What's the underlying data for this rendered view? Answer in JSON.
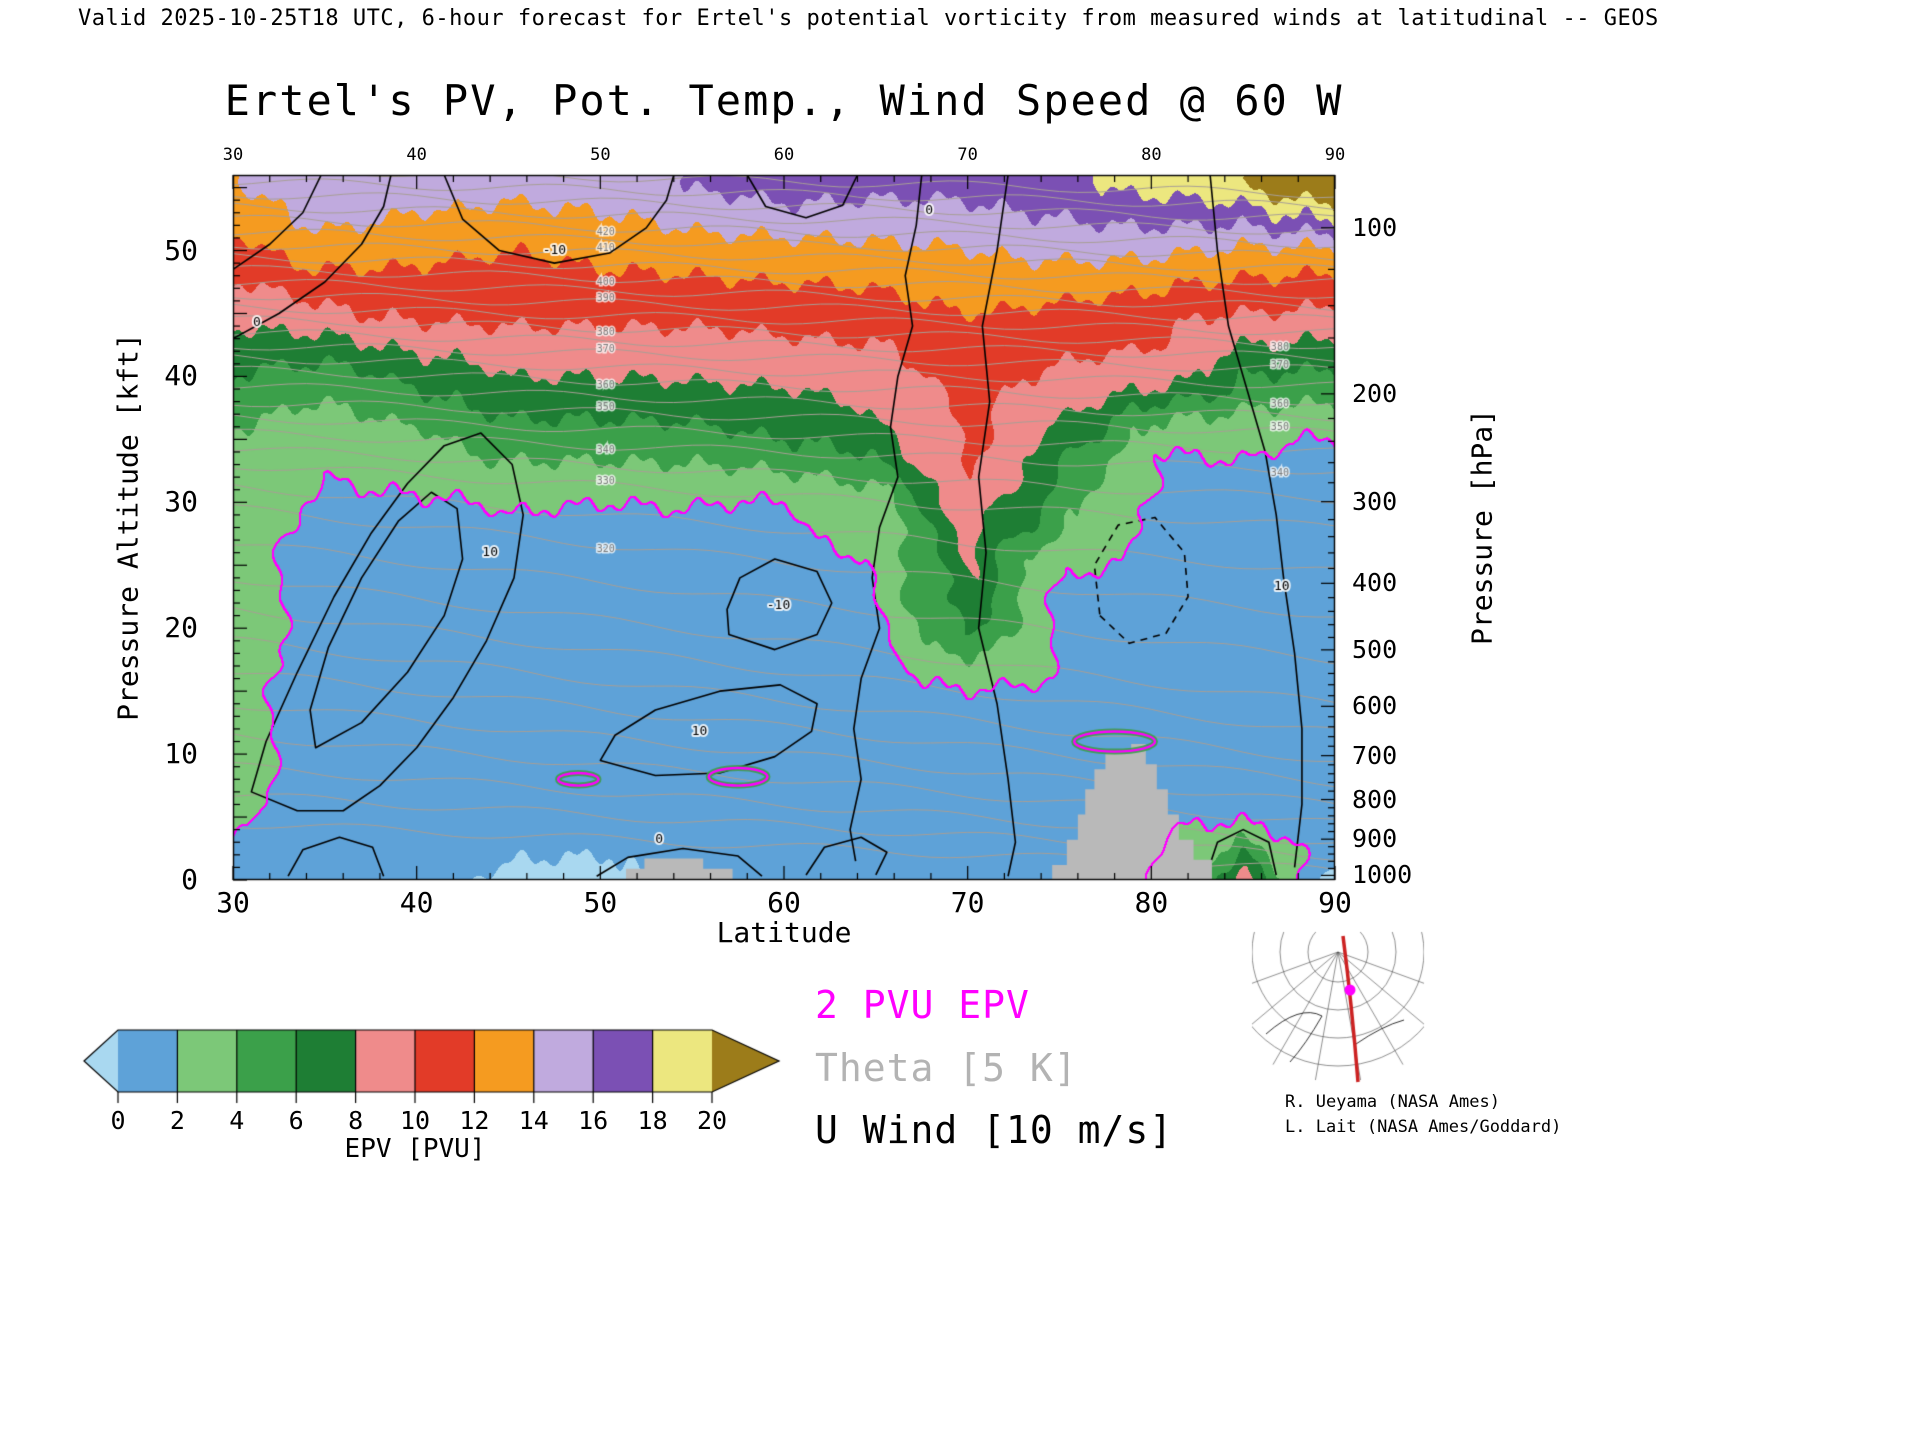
{
  "header": {
    "text": "Valid 2025-10-25T18 UTC, 6-hour forecast for Ertel's potential vorticity from measured winds at latitudinal -- GEOS"
  },
  "title": "Ertel's PV, Pot. Temp., Wind Speed @ 60 W",
  "axes": {
    "x": {
      "label": "Latitude",
      "range": [
        30,
        90
      ],
      "major_ticks": [
        30,
        40,
        50,
        60,
        70,
        80,
        90
      ],
      "minor_step": 2
    },
    "y_left": {
      "label": "Pressure Altitude [kft]",
      "range": [
        0,
        56
      ],
      "major_ticks": [
        0,
        10,
        20,
        30,
        40,
        50
      ],
      "minor_step": 1
    },
    "y_right": {
      "label": "Pressure [hPa]",
      "ticks": [
        100,
        200,
        300,
        400,
        500,
        600,
        700,
        800,
        900,
        1000
      ],
      "minor_step_hpa": 20
    }
  },
  "legend": [
    {
      "label": "2 PVU EPV",
      "color": "#ff00ff"
    },
    {
      "label": "Theta [5 K]",
      "color": "#b3b3b3"
    },
    {
      "label": "U Wind [10 m/s]",
      "color": "#000000"
    }
  ],
  "credits": {
    "line1": "R. Ueyama (NASA Ames)",
    "line2": "L. Lait (NASA Ames/Goddard)"
  },
  "colorbar": {
    "label": "EPV [PVU]",
    "tick_values": [
      0,
      2,
      4,
      6,
      8,
      10,
      12,
      14,
      16,
      18,
      20
    ]
  },
  "chart_data": {
    "type": "heatmap",
    "title": "Ertel's PV, Pot. Temp., Wind Speed @ 60 W",
    "xlabel": "Latitude",
    "ylabel": "Pressure Altitude [kft]",
    "y2label": "Pressure [hPa]",
    "x_range": [
      30,
      90
    ],
    "y_range_kft": [
      0,
      56
    ],
    "epv_grid": {
      "lat": [
        30,
        35,
        40,
        45,
        50,
        55,
        60,
        65,
        70,
        75,
        80,
        85,
        90
      ],
      "alt_kft": [
        0,
        5,
        10,
        15,
        20,
        25,
        30,
        35,
        40,
        45,
        50,
        55
      ],
      "values_bottom_up": [
        [
          1.2,
          1.0,
          0.8,
          -0.5,
          -0.5,
          0.6,
          0.8,
          1.0,
          1.5,
          1.2,
          1.5,
          9.0,
          -0.5
        ],
        [
          2.4,
          0.9,
          1.0,
          1.0,
          0.8,
          1.0,
          1.0,
          1.2,
          1.5,
          1.5,
          1.8,
          1.5,
          1.0
        ],
        [
          2.8,
          1.0,
          1.2,
          1.0,
          1.0,
          1.0,
          1.2,
          1.3,
          1.6,
          1.8,
          1.8,
          1.5,
          1.4
        ],
        [
          2.8,
          1.1,
          1.2,
          1.2,
          1.0,
          1.2,
          1.3,
          1.5,
          1.9,
          1.8,
          1.7,
          1.5,
          1.5
        ],
        [
          2.8,
          1.2,
          1.2,
          1.3,
          1.2,
          1.3,
          1.5,
          1.7,
          6.0,
          1.8,
          1.7,
          1.7,
          1.6
        ],
        [
          2.8,
          1.3,
          1.3,
          1.6,
          1.5,
          1.6,
          1.7,
          1.8,
          8.5,
          2.05,
          1.9,
          1.9,
          1.8
        ],
        [
          3.0,
          1.6,
          1.8,
          2.1,
          2.0,
          2.05,
          1.9,
          3.2,
          9.5,
          5.0,
          1.8,
          1.9,
          1.8
        ],
        [
          3.5,
          2.6,
          3.5,
          5.0,
          5.0,
          5.2,
          6.0,
          7.0,
          10.5,
          7.5,
          2.05,
          2.05,
          1.95
        ],
        [
          6.0,
          5.0,
          6.5,
          8.0,
          8.0,
          8.2,
          8.5,
          9.0,
          11.0,
          9.5,
          9.5,
          6.0,
          5.5
        ],
        [
          8.5,
          9.5,
          10.5,
          10.5,
          10.5,
          10.5,
          10.8,
          11.0,
          12.0,
          11.5,
          10.5,
          10.0,
          9.5
        ],
        [
          11.5,
          13.0,
          12.5,
          12.0,
          12.5,
          13.0,
          13.2,
          13.5,
          14.0,
          14.5,
          14.5,
          13.5,
          13.5
        ],
        [
          13.5,
          16.0,
          15.0,
          14.5,
          15.0,
          16.0,
          17.0,
          16.5,
          16.5,
          17.5,
          18.5,
          19.5,
          23.0
        ]
      ]
    },
    "colormap": {
      "breaks": [
        0,
        2,
        4,
        6,
        8,
        10,
        12,
        14,
        16,
        18,
        20
      ],
      "under": "#a9d8f0",
      "colors": [
        "#5ea2d8",
        "#7cc878",
        "#3ba04a",
        "#1e7e34",
        "#ef8b8b",
        "#e23b28",
        "#f59b20",
        "#c0aade",
        "#7b50b4",
        "#ece77f"
      ],
      "over": "#9c7c1a"
    },
    "pv2_contour_level": 2,
    "pv2_contour_color": "#ff00ff",
    "pv2_extra_ellipses": [
      {
        "lat": 57.5,
        "alt": 8.2,
        "rlat": 1.6,
        "ralt": 0.7
      },
      {
        "lat": 48.8,
        "alt": 8.0,
        "rlat": 1.1,
        "ralt": 0.5
      },
      {
        "lat": 78.0,
        "alt": 11.0,
        "rlat": 2.2,
        "ralt": 0.8
      }
    ],
    "u_wind_contours": [
      {
        "points": [
          [
            67.5,
            56
          ],
          [
            67.2,
            52
          ],
          [
            66.6,
            48
          ],
          [
            67.0,
            44
          ],
          [
            66.2,
            40
          ],
          [
            65.8,
            36
          ],
          [
            66.2,
            32
          ],
          [
            65.2,
            28
          ],
          [
            64.8,
            24
          ],
          [
            65.2,
            20
          ],
          [
            64.2,
            16
          ],
          [
            63.8,
            12
          ],
          [
            64.2,
            8
          ],
          [
            63.6,
            4
          ],
          [
            63.9,
            1.5
          ]
        ],
        "label": "0",
        "label_at": [
          67.9,
          53.2
        ],
        "closed": false,
        "dashed": false
      },
      {
        "points": [
          [
            72.2,
            56
          ],
          [
            71.6,
            50
          ],
          [
            70.8,
            44
          ],
          [
            71.2,
            38
          ],
          [
            70.6,
            32
          ],
          [
            71.0,
            26
          ],
          [
            70.6,
            20
          ],
          [
            71.6,
            14
          ],
          [
            72.2,
            8
          ],
          [
            72.6,
            3
          ],
          [
            72.2,
            0.3
          ]
        ],
        "closed": false,
        "dashed": false
      },
      {
        "points": [
          [
            31,
            7
          ],
          [
            33.5,
            5.5
          ],
          [
            36,
            5.5
          ],
          [
            38,
            7.5
          ],
          [
            40,
            10.5
          ],
          [
            42,
            14.5
          ],
          [
            43.8,
            19
          ],
          [
            45.3,
            24
          ],
          [
            45.8,
            29
          ],
          [
            45.2,
            33
          ],
          [
            43.5,
            35.5
          ],
          [
            41.5,
            34.5
          ],
          [
            39.5,
            31.5
          ],
          [
            37.5,
            27.5
          ],
          [
            35.5,
            22.5
          ],
          [
            33.5,
            16.5
          ],
          [
            31.8,
            11
          ]
        ],
        "label": "10",
        "label_at": [
          44.0,
          26.0
        ],
        "closed": true,
        "dashed": false
      },
      {
        "points": [
          [
            34.5,
            10.5
          ],
          [
            37,
            12.5
          ],
          [
            39.5,
            16.5
          ],
          [
            41.5,
            21
          ],
          [
            42.5,
            25.5
          ],
          [
            42.2,
            29.5
          ],
          [
            40.8,
            30.8
          ],
          [
            39,
            28.5
          ],
          [
            37,
            24
          ],
          [
            35.2,
            18.5
          ],
          [
            34.2,
            13.5
          ]
        ],
        "closed": true,
        "dashed": false
      },
      {
        "points": [
          [
            30,
            43
          ],
          [
            32.5,
            45
          ],
          [
            35,
            47.5
          ],
          [
            37,
            50.5
          ],
          [
            38.2,
            53.5
          ],
          [
            38.6,
            56
          ]
        ],
        "label": "0",
        "label_at": [
          31.3,
          44.3
        ],
        "closed": false,
        "dashed": false
      },
      {
        "points": [
          [
            30,
            48.5
          ],
          [
            32,
            50.5
          ],
          [
            33.8,
            53
          ],
          [
            34.8,
            56
          ]
        ],
        "closed": false,
        "dashed": false
      },
      {
        "points": [
          [
            41.5,
            56
          ],
          [
            42.5,
            52.5
          ],
          [
            44.5,
            50
          ],
          [
            47.5,
            49
          ],
          [
            50.5,
            49.8
          ],
          [
            52.5,
            51.8
          ],
          [
            53.6,
            54
          ],
          [
            54,
            56
          ]
        ],
        "label": "-10",
        "label_at": [
          47.5,
          50.0
        ],
        "closed": false,
        "dashed": false
      },
      {
        "points": [
          [
            50,
            9.5
          ],
          [
            53,
            8.3
          ],
          [
            56.5,
            8.5
          ],
          [
            59.5,
            9.8
          ],
          [
            61.5,
            11.8
          ],
          [
            61.8,
            14
          ],
          [
            59.8,
            15.5
          ],
          [
            56.5,
            15
          ],
          [
            53,
            13.5
          ],
          [
            50.8,
            11.5
          ]
        ],
        "label": "10",
        "label_at": [
          55.4,
          11.8
        ],
        "closed": true,
        "dashed": false
      },
      {
        "points": [
          [
            57,
            19.5
          ],
          [
            59.5,
            18.3
          ],
          [
            61.8,
            19.5
          ],
          [
            62.6,
            22
          ],
          [
            61.8,
            24.5
          ],
          [
            59.5,
            25.5
          ],
          [
            57.6,
            24
          ],
          [
            56.9,
            21.5
          ]
        ],
        "label": "-10",
        "label_at": [
          59.7,
          21.8
        ],
        "closed": true,
        "dashed": false
      },
      {
        "points": [
          [
            83.2,
            56
          ],
          [
            83.6,
            50
          ],
          [
            84.2,
            44
          ],
          [
            85.2,
            39
          ],
          [
            86.2,
            34
          ],
          [
            86.8,
            29
          ],
          [
            87.2,
            24
          ],
          [
            87.8,
            18
          ],
          [
            88.2,
            12
          ],
          [
            88.2,
            6
          ],
          [
            87.8,
            1
          ]
        ],
        "label": "10",
        "label_at": [
          87.1,
          23.3
        ],
        "closed": false,
        "dashed": false
      },
      {
        "points": [
          [
            77.2,
            21
          ],
          [
            78.8,
            18.8
          ],
          [
            80.8,
            19.6
          ],
          [
            82,
            22.5
          ],
          [
            81.8,
            26
          ],
          [
            80.2,
            28.8
          ],
          [
            78.2,
            28.2
          ],
          [
            76.9,
            25
          ]
        ],
        "closed": true,
        "dashed": true
      },
      {
        "points": [
          [
            49.8,
            0.3
          ],
          [
            51.5,
            1.8
          ],
          [
            54.5,
            2.5
          ],
          [
            57.5,
            1.9
          ],
          [
            58.8,
            0.3
          ]
        ],
        "label": "0",
        "label_at": [
          53.2,
          3.2
        ],
        "closed": false,
        "dashed": false
      },
      {
        "points": [
          [
            61.2,
            0.4
          ],
          [
            62.2,
            2.6
          ],
          [
            64.2,
            3.4
          ],
          [
            65.6,
            2.2
          ],
          [
            65.0,
            0.4
          ]
        ],
        "closed": false,
        "dashed": false
      },
      {
        "points": [
          [
            33.0,
            0.3
          ],
          [
            33.8,
            2.4
          ],
          [
            35.8,
            3.4
          ],
          [
            37.6,
            2.6
          ],
          [
            38.2,
            0.3
          ]
        ],
        "closed": false,
        "dashed": false
      },
      {
        "points": [
          [
            58.0,
            56
          ],
          [
            59.0,
            53.5
          ],
          [
            61.2,
            52.6
          ],
          [
            63.2,
            53.6
          ],
          [
            64.0,
            56
          ]
        ],
        "closed": false,
        "dashed": false
      },
      {
        "points": [
          [
            83.0,
            0.4
          ],
          [
            83.6,
            3.0
          ],
          [
            85.0,
            4.0
          ],
          [
            86.4,
            3.0
          ],
          [
            86.8,
            0.4
          ]
        ],
        "closed": false,
        "dashed": false
      }
    ],
    "theta": {
      "step_k": 5,
      "anchors": [
        [
          270,
          4.5,
          0.8
        ],
        [
          280,
          9,
          3
        ],
        [
          290,
          14,
          6
        ],
        [
          300,
          19,
          9.5
        ],
        [
          310,
          24,
          14
        ],
        [
          320,
          29.5,
          21
        ],
        [
          330,
          33,
          28
        ],
        [
          340,
          35.5,
          32.5
        ],
        [
          350,
          38,
          35.5
        ],
        [
          360,
          40.5,
          38
        ],
        [
          370,
          42.5,
          40.5
        ],
        [
          380,
          44.5,
          42.5
        ],
        [
          390,
          46.5,
          44.5
        ],
        [
          400,
          48.5,
          46.5
        ],
        [
          410,
          50.5,
          48.5
        ],
        [
          420,
          52.5,
          50.5
        ],
        [
          430,
          54.5,
          52.5
        ],
        [
          440,
          56.5,
          54.5
        ]
      ],
      "labels_mid": {
        "lat": 50.3,
        "values": [
          320,
          330,
          340,
          350,
          360,
          370,
          380,
          390,
          400,
          410,
          420
        ]
      },
      "labels_right": {
        "lat": 87,
        "values": [
          340,
          350,
          360,
          370,
          380
        ]
      }
    },
    "terrain": {
      "color": "#b9b9b9",
      "polygons": [
        [
          [
            74.6,
            0
          ],
          [
            74.6,
            1.2
          ],
          [
            75.4,
            1.2
          ],
          [
            75.4,
            3.2
          ],
          [
            76.0,
            3.2
          ],
          [
            76.0,
            5.2
          ],
          [
            76.4,
            5.2
          ],
          [
            76.4,
            7.2
          ],
          [
            76.9,
            7.2
          ],
          [
            76.9,
            8.8
          ],
          [
            77.5,
            8.8
          ],
          [
            77.5,
            10.2
          ],
          [
            78.9,
            10.2
          ],
          [
            78.9,
            10.8
          ],
          [
            79.7,
            10.8
          ],
          [
            79.7,
            9.2
          ],
          [
            80.3,
            9.2
          ],
          [
            80.3,
            7.2
          ],
          [
            80.9,
            7.2
          ],
          [
            80.9,
            5.2
          ],
          [
            81.5,
            5.2
          ],
          [
            81.5,
            3.2
          ],
          [
            82.3,
            3.2
          ],
          [
            82.3,
            1.6
          ],
          [
            83.3,
            1.6
          ],
          [
            83.3,
            0
          ]
        ],
        [
          [
            51.4,
            0
          ],
          [
            51.4,
            0.9
          ],
          [
            52.4,
            0.9
          ],
          [
            52.4,
            1.7
          ],
          [
            55.6,
            1.7
          ],
          [
            55.6,
            0.9
          ],
          [
            57.2,
            0.9
          ],
          [
            57.2,
            0
          ]
        ]
      ]
    }
  }
}
